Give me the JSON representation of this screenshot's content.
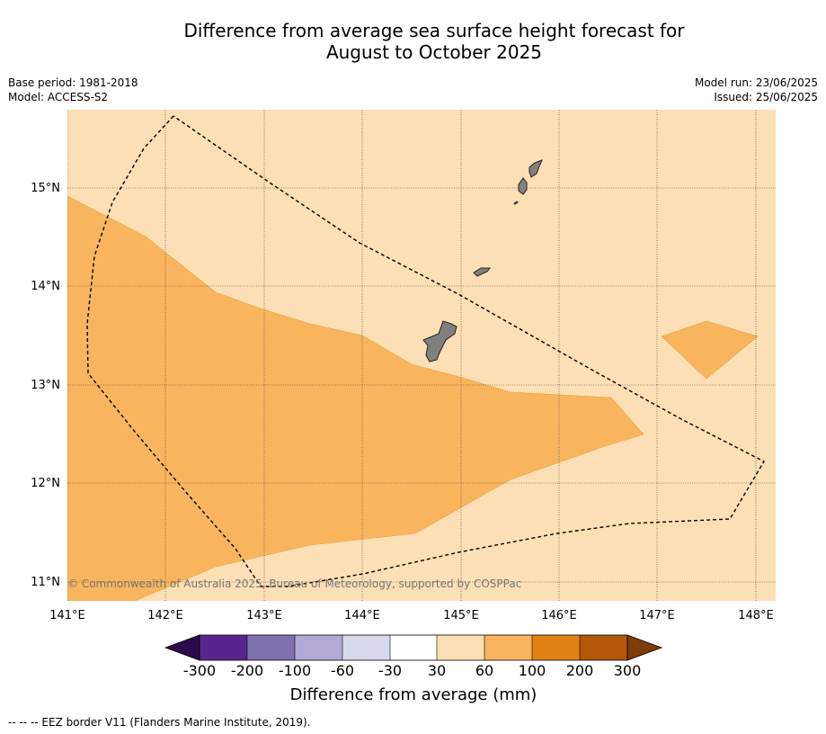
{
  "header": {
    "title_line1": "Difference from average sea surface height forecast for",
    "title_line2": "August to October 2025",
    "base_period": "Base period: 1981-2018",
    "model": "Model: ACCESS-S2",
    "model_run": "Model run: 23/06/2025",
    "issued": "Issued: 25/06/2025"
  },
  "map": {
    "lon_labels": [
      "141°E",
      "142°E",
      "143°E",
      "144°E",
      "145°E",
      "146°E",
      "147°E",
      "148°E"
    ],
    "lat_labels": [
      "15°N",
      "14°N",
      "13°N",
      "12°N",
      "11°N"
    ],
    "copyright": "© Commonwealth of Australia 2025, Bureau of Meteorology, supported by COSPPac",
    "colors": {
      "ocean_30_60": "#fddfb5",
      "band_60_100": "#f9b55e",
      "land": "#808080",
      "eez_border": "#000000"
    }
  },
  "colorbar": {
    "title": "Difference from average (mm)",
    "tick_labels": [
      "-300",
      "-200",
      "-100",
      "-60",
      "-30",
      "30",
      "60",
      "100",
      "200",
      "300"
    ],
    "colors": [
      "#2d0a4e",
      "#58258c",
      "#8070b0",
      "#b2aad4",
      "#d8d9ec",
      "#ffffff",
      "#fddfb5",
      "#f9b55e",
      "#e08214",
      "#b35806",
      "#7f3b08"
    ]
  },
  "footer": {
    "legend_text": "--  --  -- EEZ border V11 (Flanders Marine Institute, 2019)."
  }
}
